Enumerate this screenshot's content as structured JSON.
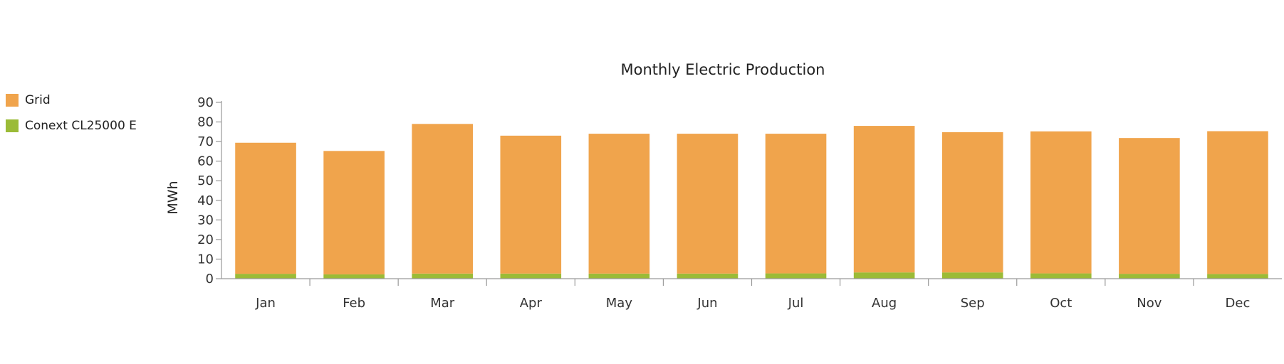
{
  "chart_data": {
    "type": "bar",
    "stacked": true,
    "title": "Monthly Electric Production",
    "ylabel": "MWh",
    "xlabel": "",
    "ylim": [
      0,
      90
    ],
    "yticks": [
      0,
      10,
      20,
      30,
      40,
      50,
      60,
      70,
      80,
      90
    ],
    "categories": [
      "Jan",
      "Feb",
      "Mar",
      "Apr",
      "May",
      "Jun",
      "Jul",
      "Aug",
      "Sep",
      "Oct",
      "Nov",
      "Dec"
    ],
    "series": [
      {
        "name": "Conext CL25000 E",
        "color": "#9bbb37",
        "values": [
          2.5,
          2.2,
          2.6,
          2.6,
          2.6,
          2.6,
          2.7,
          3.2,
          3.2,
          2.7,
          2.5,
          2.4
        ]
      },
      {
        "name": "Grid",
        "color": "#f0a44c",
        "values": [
          66.9,
          63.0,
          76.4,
          70.4,
          71.4,
          71.4,
          71.3,
          74.8,
          71.6,
          72.5,
          69.3,
          72.9
        ]
      }
    ],
    "legend": "left"
  }
}
